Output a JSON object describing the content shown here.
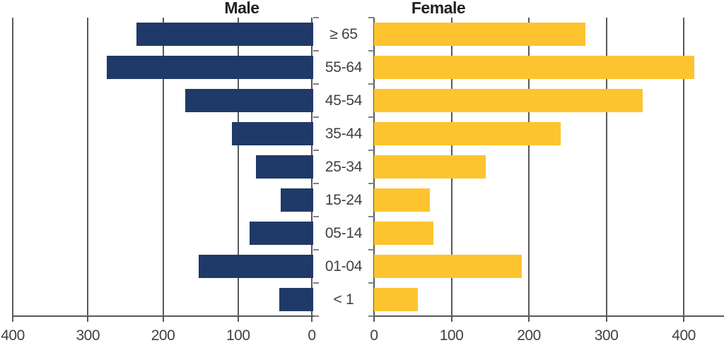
{
  "chart_data": {
    "type": "bar",
    "subtype": "population-pyramid",
    "orientation": "horizontal",
    "grid": true,
    "legend": "none",
    "title": "",
    "xlabel": "",
    "ylabel": "",
    "categories": [
      "≥ 65",
      "55-64",
      "45-54",
      "35-44",
      "25-34",
      "15-24",
      "05-14",
      "01-04",
      "< 1"
    ],
    "series": [
      {
        "name": "Male",
        "side": "left",
        "direction": "right-to-left",
        "color": "#1f3a68",
        "values": [
          235,
          275,
          170,
          108,
          76,
          43,
          85,
          152,
          45
        ]
      },
      {
        "name": "Female",
        "side": "right",
        "direction": "left-to-right",
        "color": "#fdc42f",
        "values": [
          273,
          414,
          347,
          241,
          144,
          72,
          77,
          191,
          57
        ]
      }
    ],
    "male_axis": {
      "ticks": [
        400,
        300,
        200,
        100,
        0
      ],
      "range": [
        0,
        400
      ]
    },
    "female_axis": {
      "ticks": [
        0,
        100,
        200,
        300,
        400
      ],
      "range": [
        0,
        452
      ]
    },
    "colors": {
      "male_bar": "#1f3a68",
      "female_bar": "#fdc42f",
      "gridline": "#58595b",
      "axis": "#4d4d4f",
      "tick": "#808285",
      "label": "#414042",
      "title": "#231f20"
    }
  }
}
